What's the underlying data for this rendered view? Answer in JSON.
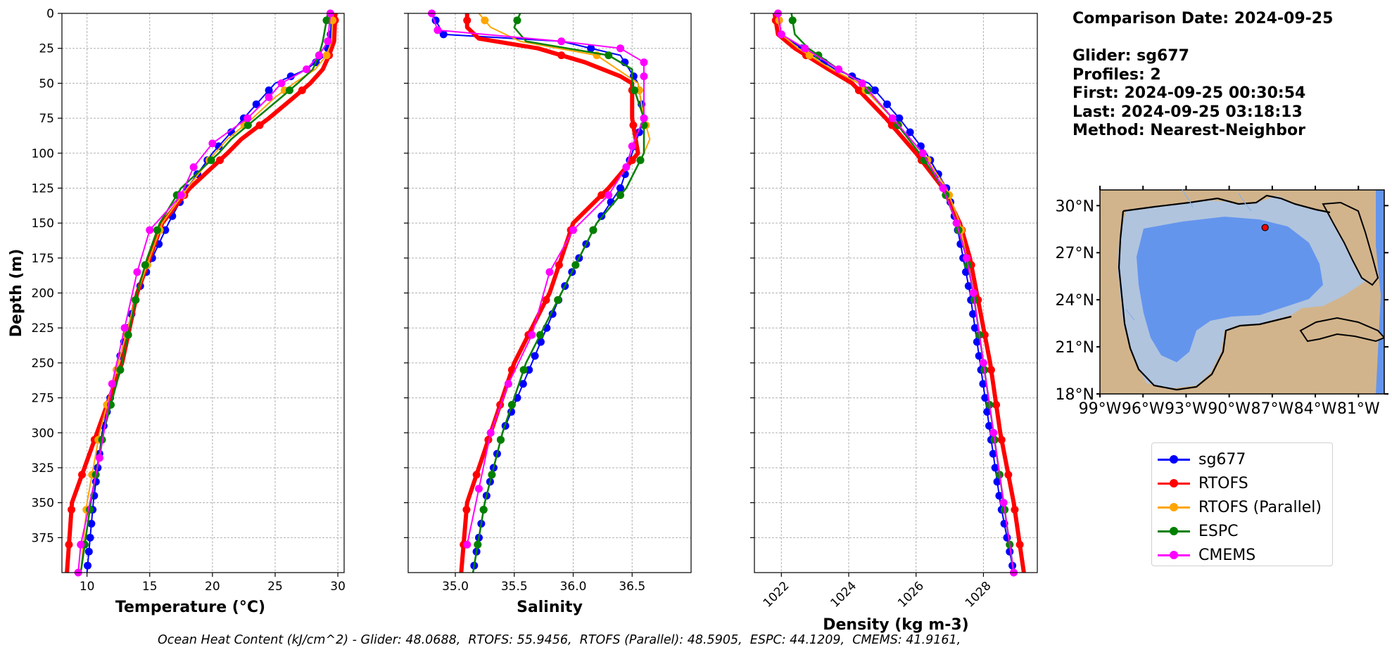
{
  "info": {
    "comparison_date": "Comparison Date: 2024-09-25",
    "glider": "Glider: sg677",
    "profiles": "Profiles: 2",
    "first": "First: 2024-09-25 00:30:54",
    "last": "Last: 2024-09-25 03:18:13",
    "method": "Method: Nearest-Neighbor"
  },
  "legend": [
    {
      "name": "sg677",
      "color": "#0000ff"
    },
    {
      "name": "RTOFS",
      "color": "#ff0000"
    },
    {
      "name": "RTOFS (Parallel)",
      "color": "#ffa500"
    },
    {
      "name": "ESPC",
      "color": "#008000"
    },
    {
      "name": "CMEMS",
      "color": "#ff00ff"
    }
  ],
  "footer": "Ocean Heat Content (kJ/cm^2) - Glider: 48.0688,  RTOFS: 55.9456,  RTOFS (Parallel): 48.5905,  ESPC: 44.1209,  CMEMS: 41.9161,",
  "map": {
    "lat_ticks": [
      "30°N",
      "27°N",
      "24°N",
      "21°N",
      "18°N"
    ],
    "lon_ticks": [
      "99°W",
      "96°W",
      "93°W",
      "90°W",
      "87°W",
      "84°W",
      "81°W"
    ],
    "marker_lon": -87.5,
    "marker_lat": 28.6
  },
  "chart_data": [
    {
      "type": "line",
      "xlabel": "Temperature (°C)",
      "ylabel": "Depth (m)",
      "xlim": [
        8,
        30.5
      ],
      "ylim": [
        400,
        0
      ],
      "xticks": [
        10,
        15,
        20,
        25,
        30
      ],
      "yticks": [
        0,
        25,
        50,
        75,
        100,
        125,
        150,
        175,
        200,
        225,
        250,
        275,
        300,
        325,
        350,
        375
      ],
      "grid": true,
      "series": [
        {
          "name": "sg677",
          "color": "#0000ff",
          "depth": [
            0,
            20,
            30,
            40,
            50,
            60,
            75,
            90,
            100,
            125,
            150,
            175,
            200,
            250,
            300,
            350,
            400
          ],
          "values": [
            29.5,
            29.4,
            29.0,
            27.5,
            25.0,
            24.0,
            22.5,
            21.0,
            20.0,
            18.0,
            16.5,
            15.2,
            14.0,
            12.5,
            11.2,
            10.5,
            10.0
          ]
        },
        {
          "name": "RTOFS",
          "color": "#ff0000",
          "depth": [
            0,
            20,
            30,
            40,
            50,
            60,
            75,
            90,
            100,
            125,
            150,
            175,
            200,
            250,
            300,
            350,
            400
          ],
          "values": [
            29.8,
            29.7,
            29.3,
            28.8,
            27.8,
            26.5,
            24.5,
            22.3,
            21.2,
            18.2,
            16.0,
            15.0,
            14.0,
            12.8,
            10.8,
            8.8,
            8.4
          ]
        },
        {
          "name": "RTOFS (Parallel)",
          "color": "#ffa500",
          "depth": [
            0,
            20,
            30,
            40,
            50,
            60,
            75,
            90,
            100,
            125,
            150,
            175,
            200,
            250,
            300,
            350,
            400
          ],
          "values": [
            29.6,
            29.5,
            29.1,
            28.2,
            26.5,
            25.0,
            23.2,
            21.2,
            20.2,
            18.0,
            16.0,
            15.0,
            14.0,
            12.5,
            11.0,
            10.0,
            9.5
          ]
        },
        {
          "name": "ESPC",
          "color": "#008000",
          "depth": [
            0,
            20,
            30,
            40,
            50,
            60,
            75,
            90,
            100,
            125,
            150,
            175,
            200,
            250,
            300,
            350,
            400
          ],
          "values": [
            29.2,
            28.8,
            28.5,
            28.0,
            26.8,
            25.5,
            23.5,
            21.5,
            20.5,
            17.5,
            15.8,
            14.8,
            14.0,
            12.8,
            11.3,
            10.3,
            9.5
          ]
        },
        {
          "name": "CMEMS",
          "color": "#ff00ff",
          "depth": [
            0,
            20,
            30,
            40,
            50,
            60,
            75,
            93,
            110,
            130,
            155,
            185,
            225,
            265,
            318,
            380,
            400
          ],
          "values": [
            29.4,
            29.2,
            28.5,
            27.5,
            25.5,
            24.5,
            22.8,
            20.0,
            18.5,
            17.5,
            15.0,
            14.0,
            13.0,
            12.0,
            11.0,
            9.5,
            9.3
          ]
        }
      ]
    },
    {
      "type": "line",
      "xlabel": "Salinity",
      "xlim": [
        34.6,
        37.0
      ],
      "ylim": [
        400,
        0
      ],
      "xticks": [
        35.0,
        35.5,
        36.0,
        36.5
      ],
      "grid": true,
      "series": [
        {
          "name": "sg677",
          "color": "#0000ff",
          "depth": [
            0,
            15,
            20,
            30,
            50,
            75,
            100,
            125,
            150,
            175,
            200,
            250,
            300,
            350,
            400
          ],
          "values": [
            34.8,
            34.9,
            35.9,
            36.4,
            36.55,
            36.6,
            36.5,
            36.4,
            36.2,
            36.05,
            35.9,
            35.65,
            35.4,
            35.25,
            35.15
          ]
        },
        {
          "name": "RTOFS",
          "color": "#ff0000",
          "depth": [
            0,
            10,
            18,
            25,
            35,
            45,
            50,
            75,
            100,
            125,
            150,
            175,
            200,
            250,
            300,
            350,
            400
          ],
          "values": [
            35.1,
            35.1,
            35.2,
            35.7,
            36.1,
            36.4,
            36.5,
            36.5,
            36.55,
            36.3,
            36.0,
            35.9,
            35.8,
            35.5,
            35.3,
            35.1,
            35.05
          ]
        },
        {
          "name": "RTOFS (Parallel)",
          "color": "#ffa500",
          "depth": [
            0,
            10,
            20,
            30,
            50,
            75,
            90,
            100,
            125,
            150,
            175,
            200,
            250,
            300,
            350,
            400
          ],
          "values": [
            35.2,
            35.3,
            35.55,
            36.2,
            36.55,
            36.6,
            36.65,
            36.6,
            36.45,
            36.2,
            36.05,
            35.9,
            35.6,
            35.4,
            35.25,
            35.15
          ]
        },
        {
          "name": "ESPC",
          "color": "#008000",
          "depth": [
            0,
            10,
            20,
            30,
            40,
            50,
            75,
            100,
            125,
            150,
            175,
            200,
            250,
            300,
            350,
            400
          ],
          "values": [
            35.55,
            35.5,
            35.6,
            36.3,
            36.5,
            36.5,
            36.6,
            36.6,
            36.45,
            36.2,
            36.05,
            35.9,
            35.6,
            35.4,
            35.25,
            35.15
          ]
        },
        {
          "name": "CMEMS",
          "color": "#ff00ff",
          "depth": [
            0,
            12,
            20,
            25,
            35,
            45,
            75,
            95,
            110,
            130,
            155,
            185,
            230,
            265,
            300,
            340,
            380
          ],
          "values": [
            34.8,
            34.85,
            35.9,
            36.4,
            36.6,
            36.6,
            36.6,
            36.5,
            36.45,
            36.3,
            36.0,
            35.8,
            35.65,
            35.45,
            35.3,
            35.2,
            35.1
          ]
        }
      ]
    },
    {
      "type": "line",
      "xlabel": "Density (kg m-3)",
      "xlim": [
        1021.2,
        1029.6
      ],
      "ylim": [
        400,
        0
      ],
      "xticks": [
        1022,
        1024,
        1026,
        1028
      ],
      "grid": true,
      "series": [
        {
          "name": "sg677",
          "color": "#0000ff",
          "depth": [
            0,
            15,
            25,
            40,
            50,
            75,
            100,
            125,
            150,
            175,
            200,
            250,
            300,
            350,
            400
          ],
          "values": [
            1021.9,
            1022.0,
            1022.6,
            1023.6,
            1024.6,
            1025.5,
            1026.3,
            1026.9,
            1027.2,
            1027.4,
            1027.6,
            1027.9,
            1028.2,
            1028.5,
            1028.9
          ]
        },
        {
          "name": "RTOFS",
          "color": "#ff0000",
          "depth": [
            0,
            15,
            25,
            40,
            50,
            75,
            100,
            125,
            150,
            175,
            200,
            250,
            300,
            350,
            400
          ],
          "values": [
            1021.8,
            1021.9,
            1022.4,
            1023.4,
            1024.1,
            1025.1,
            1026.0,
            1026.8,
            1027.3,
            1027.6,
            1027.8,
            1028.2,
            1028.5,
            1028.9,
            1029.2
          ]
        },
        {
          "name": "RTOFS (Parallel)",
          "color": "#ffa500",
          "depth": [
            0,
            15,
            25,
            40,
            50,
            75,
            100,
            125,
            150,
            175,
            200,
            250,
            300,
            350,
            400
          ],
          "values": [
            1021.9,
            1022.0,
            1022.5,
            1023.5,
            1024.3,
            1025.3,
            1026.2,
            1026.9,
            1027.3,
            1027.5,
            1027.7,
            1028.0,
            1028.3,
            1028.6,
            1028.9
          ]
        },
        {
          "name": "ESPC",
          "color": "#008000",
          "depth": [
            0,
            15,
            25,
            40,
            50,
            75,
            100,
            125,
            150,
            175,
            200,
            250,
            300,
            350,
            400
          ],
          "values": [
            1022.3,
            1022.4,
            1022.8,
            1023.7,
            1024.4,
            1025.3,
            1026.1,
            1026.8,
            1027.2,
            1027.5,
            1027.7,
            1028.0,
            1028.3,
            1028.6,
            1028.9
          ]
        },
        {
          "name": "CMEMS",
          "color": "#ff00ff",
          "depth": [
            0,
            15,
            25,
            40,
            50,
            75,
            100,
            125,
            150,
            175,
            200,
            250,
            300,
            350,
            400
          ],
          "values": [
            1021.9,
            1022.0,
            1022.7,
            1023.7,
            1024.4,
            1025.3,
            1026.2,
            1026.8,
            1027.2,
            1027.5,
            1027.7,
            1028.0,
            1028.3,
            1028.6,
            1028.9
          ]
        }
      ]
    }
  ]
}
